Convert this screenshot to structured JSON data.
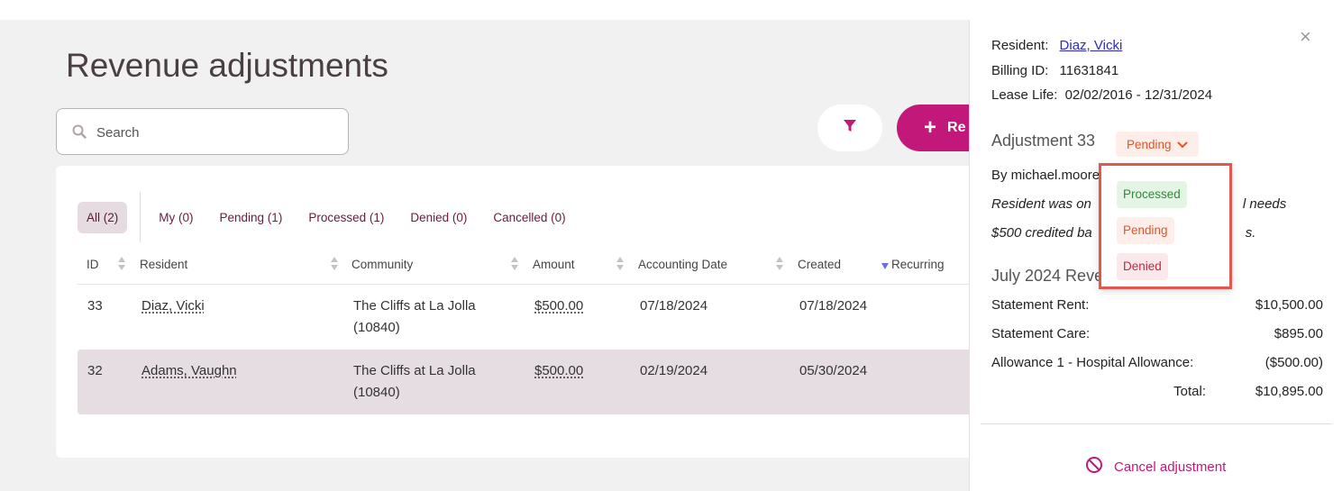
{
  "page": {
    "title": "Revenue adjustments"
  },
  "search": {
    "placeholder": "Search"
  },
  "toolbar": {
    "add_label": "Re"
  },
  "tabs": [
    {
      "label": "All (2)",
      "active": true
    },
    {
      "label": "My (0)"
    },
    {
      "label": "Pending (1)"
    },
    {
      "label": "Processed (1)"
    },
    {
      "label": "Denied (0)"
    },
    {
      "label": "Cancelled (0)"
    }
  ],
  "table": {
    "columns": [
      "ID",
      "Resident",
      "Community",
      "Amount",
      "Accounting Date",
      "Created",
      "Recurring"
    ],
    "rows": [
      {
        "id": "33",
        "resident": "Diaz, Vicki",
        "community_line1": "The Cliffs at La Jolla",
        "community_line2": "(10840)",
        "amount": "$500.00",
        "accounting_date": "07/18/2024",
        "created": "07/18/2024"
      },
      {
        "id": "32",
        "resident": "Adams, Vaughn",
        "community_line1": "The Cliffs at La Jolla",
        "community_line2": "(10840)",
        "amount": "$500.00",
        "accounting_date": "02/19/2024",
        "created": "05/30/2024",
        "selected": true
      }
    ]
  },
  "panel": {
    "close": "×",
    "resident_label": "Resident:",
    "resident_value": "Diaz, Vicki",
    "billing_label": "Billing ID:",
    "billing_value": "11631841",
    "lease_label": "Lease Life:",
    "lease_value": "02/02/2016 - 12/31/2024",
    "adjustment_title": "Adjustment 33",
    "status": "Pending",
    "by_line": "By michael.moore",
    "note_line1_a": "Resident was on",
    "note_line1_b": "l needs",
    "note_line2_a": "$500 credited ba",
    "note_line2_b": "s.",
    "section_title": "July 2024 Reve",
    "items": [
      {
        "label": "Statement Rent:",
        "value": "$10,500.00"
      },
      {
        "label": "Statement Care:",
        "value": "$895.00"
      },
      {
        "label": "Allowance 1 - Hospital Allowance:",
        "value": "($500.00)"
      }
    ],
    "total_label": "Total:",
    "total_value": "$10,895.00",
    "cancel_label": "Cancel adjustment"
  },
  "status_dropdown": {
    "options": [
      "Processed",
      "Pending",
      "Denied"
    ]
  },
  "colors": {
    "brand": "#c2187a",
    "pending": "#e2552c",
    "processed": "#2f8a3a",
    "denied": "#c0293f",
    "highlight_border": "#e4574e"
  }
}
